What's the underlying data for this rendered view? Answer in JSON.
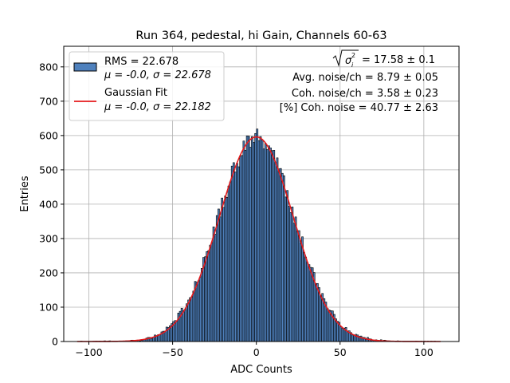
{
  "chart_data": {
    "type": "bar",
    "title": "Run 364, pedestal, hi Gain, Channels 60-63",
    "xlabel": "ADC Counts",
    "ylabel": "Entries",
    "xlim": [
      -115,
      121
    ],
    "ylim": [
      0,
      860
    ],
    "xticks": [
      -100,
      -50,
      0,
      50,
      100
    ],
    "yticks": [
      0,
      100,
      200,
      300,
      400,
      500,
      600,
      700,
      800
    ],
    "xtick_labels": [
      "−100",
      "−50",
      "0",
      "50",
      "100"
    ],
    "ytick_labels": [
      "0",
      "100",
      "200",
      "300",
      "400",
      "500",
      "600",
      "700",
      "800"
    ],
    "grid": true,
    "legend_position": "top-left",
    "histogram": {
      "name": "RMS = 22.678",
      "subtitle": "μ = -0.0, σ = 22.678",
      "color": "#4f81bd",
      "edgecolor": "#000000",
      "bin_width": 1,
      "range": [
        -107,
        110
      ],
      "mu": 0.0,
      "sigma": 22.678,
      "peak": 598
    },
    "fit": {
      "name": "Gaussian Fit",
      "subtitle": "μ = -0.0, σ = 22.182",
      "color": "#e41a1c",
      "mu": 0.0,
      "sigma": 22.182,
      "amplitude": 596
    },
    "annotations": {
      "sigma_total": "= 17.58 ± 0.1",
      "avg_noise": "Avg. noise/ch = 8.79 ± 0.05",
      "coh_noise": "Coh. noise/ch = 3.58 ± 0.23",
      "pct_coh_noise": "[%] Coh. noise = 40.77 ± 2.63"
    }
  }
}
